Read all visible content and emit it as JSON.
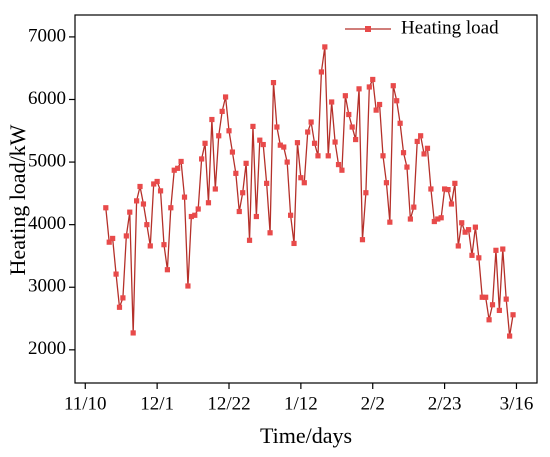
{
  "chart_data": {
    "type": "line",
    "xlabel": "Time/days",
    "ylabel": "Heating load/kW",
    "x": [
      6,
      7,
      8,
      9,
      10,
      11,
      12,
      13,
      14,
      15,
      16,
      17,
      18,
      19,
      20,
      21,
      22,
      23,
      24,
      25,
      26,
      27,
      28,
      29,
      30,
      31,
      32,
      33,
      34,
      35,
      36,
      37,
      38,
      39,
      40,
      41,
      42,
      43,
      44,
      45,
      46,
      47,
      48,
      49,
      50,
      51,
      52,
      53,
      54,
      55,
      56,
      57,
      58,
      59,
      60,
      61,
      62,
      63,
      64,
      65,
      66,
      67,
      68,
      69,
      70,
      71,
      72,
      73,
      74,
      75,
      76,
      77,
      78,
      79,
      80,
      81,
      82,
      83,
      84,
      85,
      86,
      87,
      88,
      89,
      90,
      91,
      92,
      93,
      94,
      95,
      96,
      97,
      98,
      99,
      100,
      101,
      102,
      103,
      104,
      105,
      106,
      107,
      108,
      109,
      110,
      111,
      112,
      113,
      114,
      115,
      116,
      117,
      118,
      119,
      120,
      121,
      122,
      123,
      124,
      125
    ],
    "series": [
      {
        "name": "Heating load",
        "color": "#b5302a",
        "marker_color": "#e84a4a",
        "values": [
          4270,
          3720,
          3780,
          3210,
          2680,
          2830,
          3820,
          4200,
          2270,
          4380,
          4610,
          4330,
          4000,
          3660,
          4650,
          4690,
          4540,
          3680,
          3280,
          4270,
          4870,
          4900,
          5010,
          4440,
          3020,
          4130,
          4150,
          4250,
          5050,
          5300,
          4350,
          5680,
          4570,
          5420,
          5810,
          6040,
          5500,
          5160,
          4820,
          4210,
          4510,
          4980,
          3750,
          5570,
          4130,
          5350,
          5280,
          4660,
          3870,
          6270,
          5560,
          5270,
          5240,
          5000,
          4150,
          3700,
          5310,
          4750,
          4670,
          5480,
          5640,
          5300,
          5100,
          6440,
          6840,
          5100,
          5960,
          5320,
          4960,
          4870,
          6060,
          5760,
          5560,
          5360,
          6170,
          3760,
          4510,
          6200,
          6320,
          5830,
          5920,
          5100,
          4670,
          4040,
          6220,
          5980,
          5620,
          5150,
          4920,
          4090,
          4280,
          5330,
          5420,
          5130,
          5220,
          4570,
          4050,
          4090,
          4110,
          4570,
          4560,
          4330,
          4660,
          3660,
          4030,
          3880,
          3920,
          3510,
          3960,
          3470,
          2840,
          2840,
          2480,
          2720,
          3590,
          2630,
          3610,
          2810,
          2220,
          2560
        ]
      }
    ],
    "xlim": [
      -3,
      132
    ],
    "xticks": [
      {
        "value": 0,
        "label": "11/10"
      },
      {
        "value": 21,
        "label": "12/1"
      },
      {
        "value": 42,
        "label": "12/22"
      },
      {
        "value": 63,
        "label": "1/12"
      },
      {
        "value": 84,
        "label": "2/2"
      },
      {
        "value": 105,
        "label": "2/23"
      },
      {
        "value": 126,
        "label": "3/16"
      }
    ],
    "ylim": [
      1470,
      7350
    ],
    "yticks": [
      2000,
      3000,
      4000,
      5000,
      6000,
      7000
    ],
    "legend": "upper right"
  }
}
